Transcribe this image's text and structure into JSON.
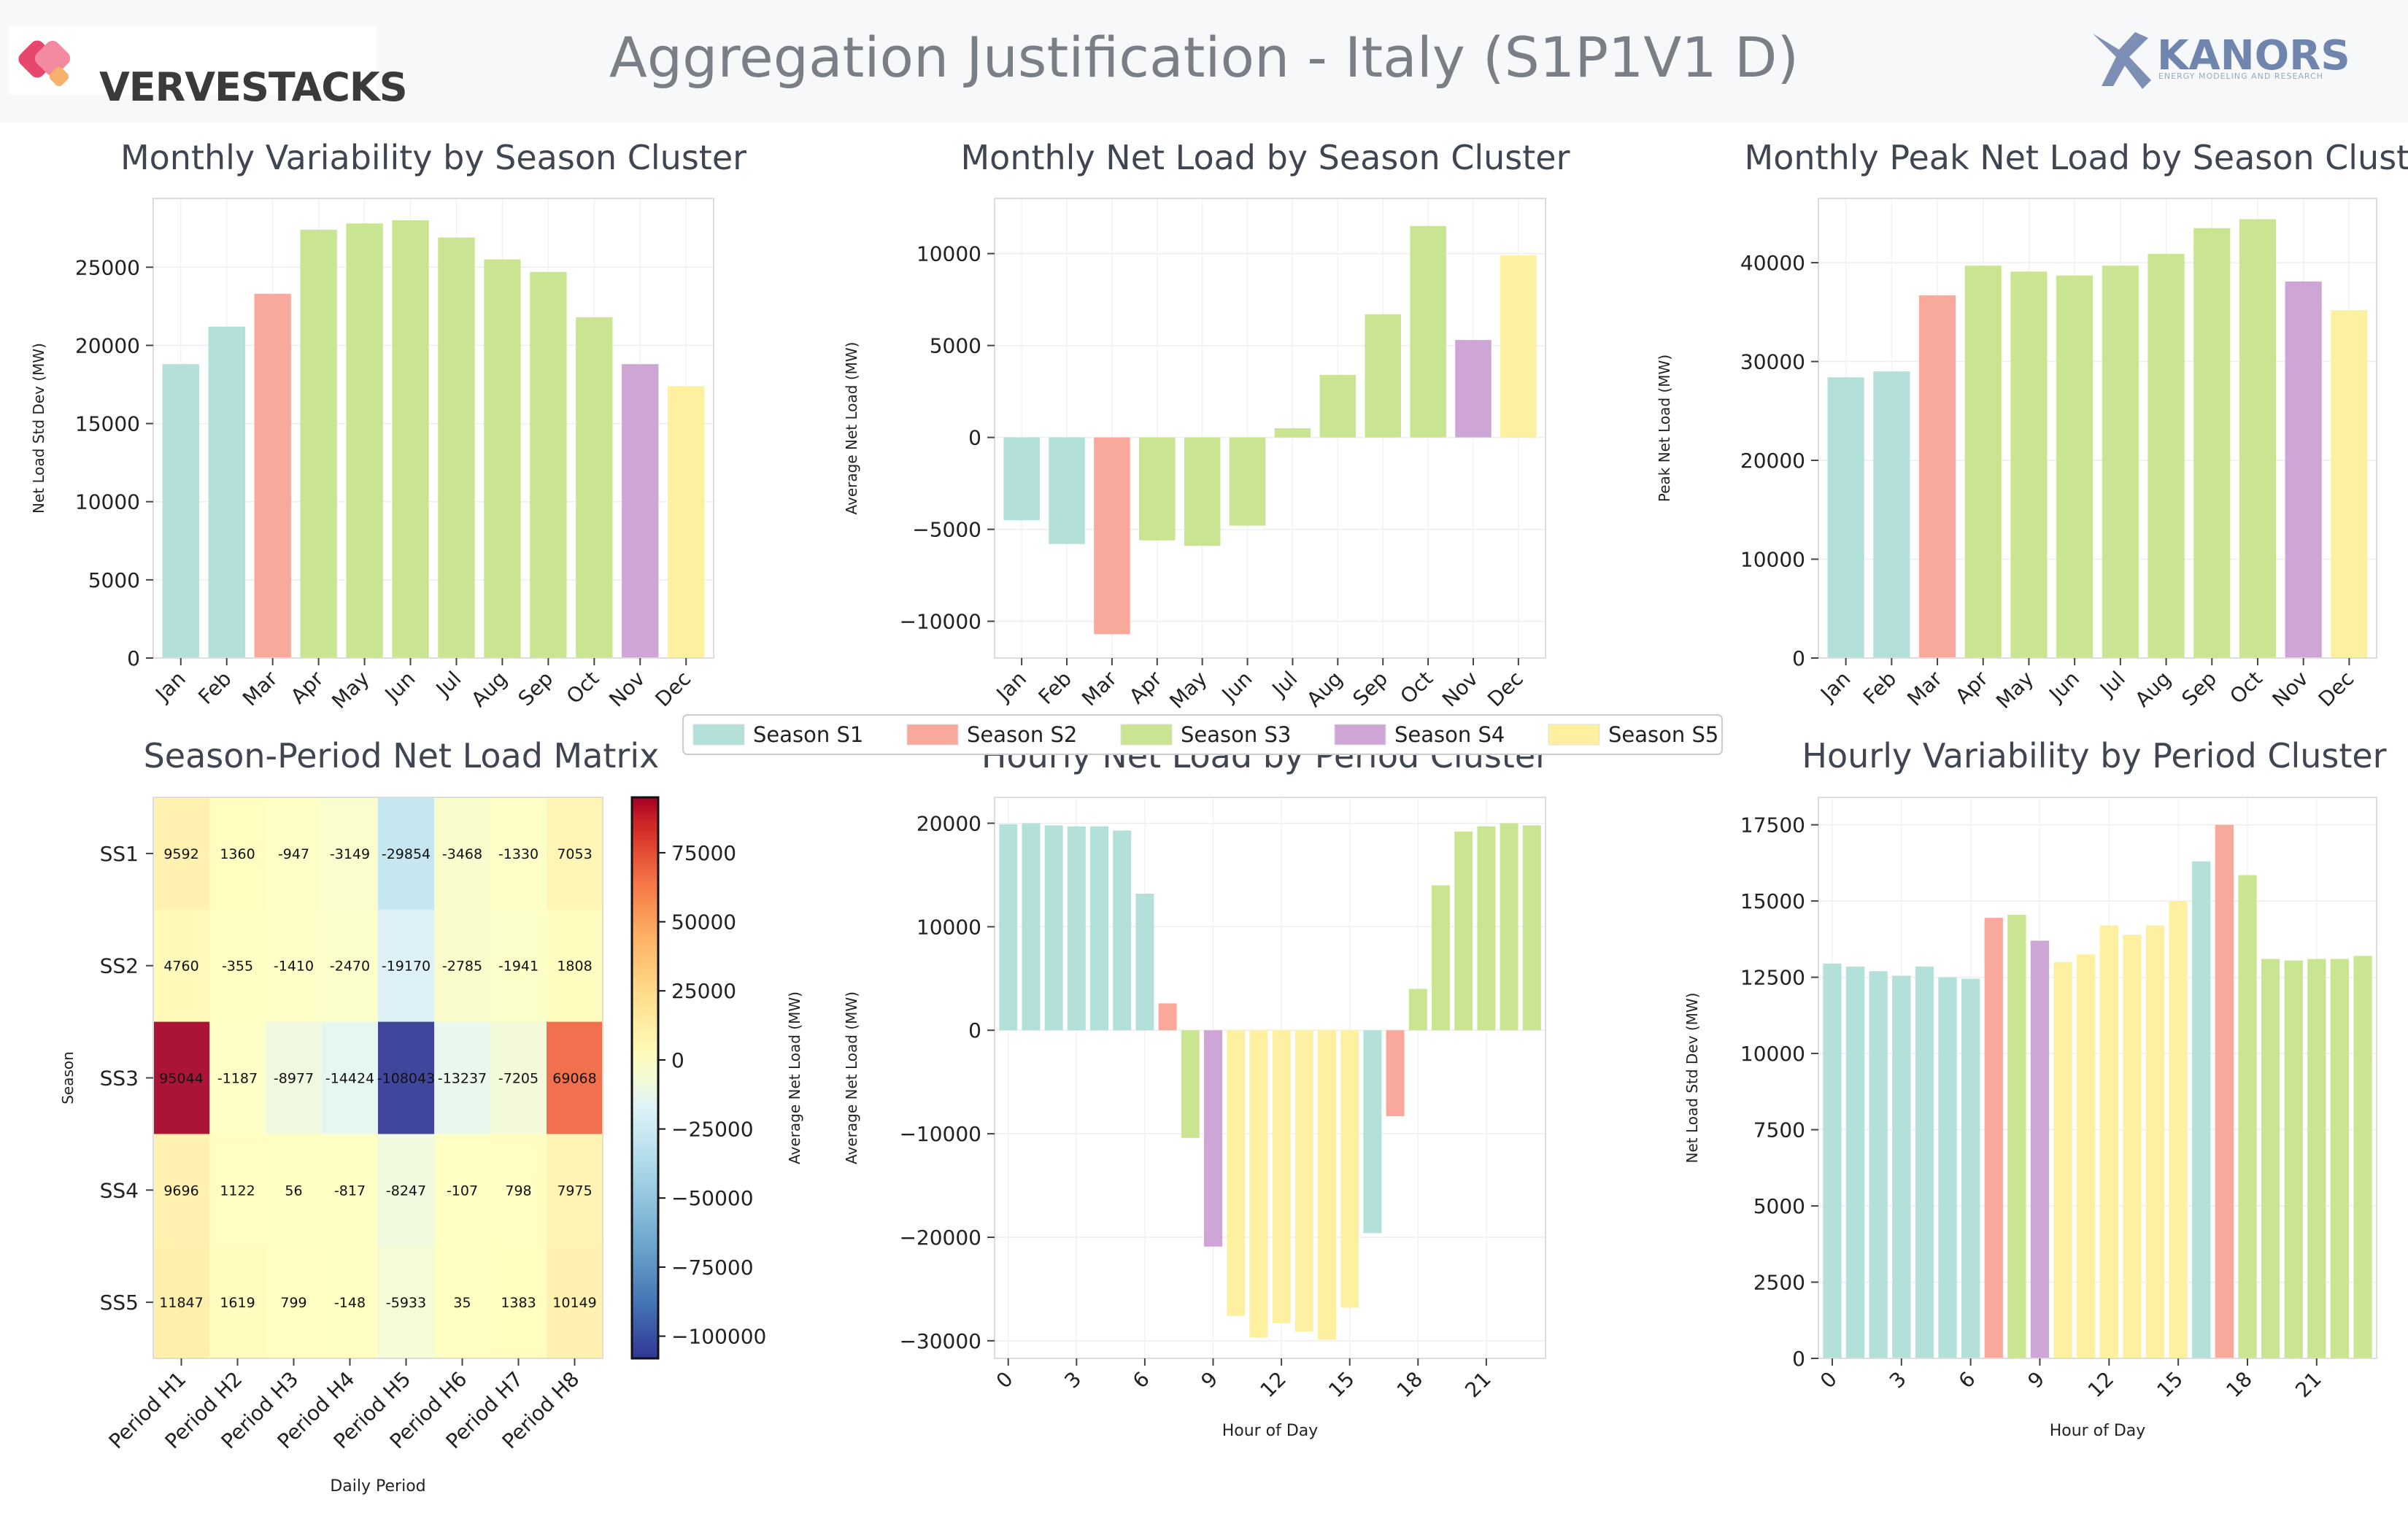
{
  "header": {
    "brand_left": "VERVESTACKS",
    "title": "Aggregation Justification - Italy (S1P1V1 D)",
    "brand_right": "KANORS",
    "brand_right_sub": "ENERGY MODELING AND RESEARCH"
  },
  "colors": {
    "S1": "#b3e0d8",
    "S2": "#f9a99c",
    "S3": "#c9e591",
    "S4": "#cda6d6",
    "S5": "#fdf0a0"
  },
  "legend": [
    "Season S1",
    "Season S2",
    "Season S3",
    "Season S4",
    "Season S5"
  ],
  "chart_data": [
    {
      "id": "variability",
      "type": "bar",
      "title": "Monthly Variability by Season Cluster",
      "xlabel": "",
      "ylabel": "Net Load Std Dev (MW)",
      "categories": [
        "Jan",
        "Feb",
        "Mar",
        "Apr",
        "May",
        "Jun",
        "Jul",
        "Aug",
        "Sep",
        "Oct",
        "Nov",
        "Dec"
      ],
      "values": [
        18800,
        21200,
        23300,
        27400,
        27800,
        28000,
        26900,
        25500,
        24700,
        21800,
        18800,
        17400
      ],
      "clusters": [
        "S1",
        "S1",
        "S2",
        "S3",
        "S3",
        "S3",
        "S3",
        "S3",
        "S3",
        "S3",
        "S4",
        "S5"
      ],
      "ylim": [
        0,
        29400
      ],
      "yticks": [
        0,
        5000,
        10000,
        15000,
        20000,
        25000
      ]
    },
    {
      "id": "netload",
      "type": "bar",
      "title": "Monthly Net Load by Season Cluster",
      "xlabel": "",
      "ylabel": "Average Net Load (MW)",
      "categories": [
        "Jan",
        "Feb",
        "Mar",
        "Apr",
        "May",
        "Jun",
        "Jul",
        "Aug",
        "Sep",
        "Oct",
        "Nov",
        "Dec"
      ],
      "values": [
        -4500,
        -5800,
        -10700,
        -5600,
        -5900,
        -4800,
        500,
        3400,
        6700,
        11500,
        5300,
        9900
      ],
      "clusters": [
        "S1",
        "S1",
        "S2",
        "S3",
        "S3",
        "S3",
        "S3",
        "S3",
        "S3",
        "S3",
        "S4",
        "S5"
      ],
      "ylim": [
        -12000,
        13000
      ],
      "yticks": [
        -10000,
        -5000,
        0,
        5000,
        10000
      ]
    },
    {
      "id": "peak",
      "type": "bar",
      "title": "Monthly Peak Net Load by Season Cluster",
      "xlabel": "",
      "ylabel": "Peak Net Load (MW)",
      "categories": [
        "Jan",
        "Feb",
        "Mar",
        "Apr",
        "May",
        "Jun",
        "Jul",
        "Aug",
        "Sep",
        "Oct",
        "Nov",
        "Dec"
      ],
      "values": [
        28400,
        29000,
        36700,
        39700,
        39100,
        38700,
        39700,
        40900,
        43500,
        44400,
        38100,
        35200
      ],
      "clusters": [
        "S1",
        "S1",
        "S2",
        "S3",
        "S3",
        "S3",
        "S3",
        "S3",
        "S3",
        "S3",
        "S4",
        "S5"
      ],
      "ylim": [
        0,
        46500
      ],
      "yticks": [
        0,
        10000,
        20000,
        30000,
        40000
      ]
    },
    {
      "id": "matrix",
      "type": "heatmap",
      "title": "Season-Period Net Load Matrix",
      "xlabel": "Daily Period",
      "ylabel": "Season",
      "colorbar_label": "Average Net Load (MW)",
      "rows": [
        "SS1",
        "SS2",
        "SS3",
        "SS4",
        "SS5"
      ],
      "cols": [
        "Period H1",
        "Period H2",
        "Period H3",
        "Period H4",
        "Period H5",
        "Period H6",
        "Period H7",
        "Period H8"
      ],
      "values": [
        [
          9592,
          1360,
          -947,
          -3149,
          -29854,
          -3468,
          -1330,
          7053
        ],
        [
          4760,
          -355,
          -1410,
          -2470,
          -19170,
          -2785,
          -1941,
          1808
        ],
        [
          95044,
          -1187,
          -8977,
          -14424,
          -108043,
          -13237,
          -7205,
          69068
        ],
        [
          9696,
          1122,
          56,
          -817,
          -8247,
          -107,
          798,
          7975
        ],
        [
          11847,
          1619,
          799,
          -148,
          -5933,
          35,
          1383,
          10149
        ]
      ],
      "vlim": [
        -108043,
        95044
      ],
      "cbar_ticks": [
        75000,
        50000,
        25000,
        0,
        -25000,
        -50000,
        -75000,
        -100000
      ]
    },
    {
      "id": "hourly_netload",
      "type": "bar",
      "title": "Hourly Net Load by Period Cluster",
      "xlabel": "Hour of Day",
      "ylabel": "Average Net Load (MW)",
      "categories": [
        0,
        1,
        2,
        3,
        4,
        5,
        6,
        7,
        8,
        9,
        10,
        11,
        12,
        13,
        14,
        15,
        16,
        17,
        18,
        19,
        20,
        21,
        22,
        23
      ],
      "values": [
        19900,
        20000,
        19800,
        19700,
        19700,
        19300,
        13200,
        2600,
        -10400,
        -20900,
        -27600,
        -29700,
        -28300,
        -29100,
        -29900,
        -26800,
        -19600,
        -8300,
        4000,
        14000,
        19200,
        19700,
        20000,
        19800
      ],
      "clusters": [
        "S1",
        "S1",
        "S1",
        "S1",
        "S1",
        "S1",
        "S1",
        "S2",
        "S3",
        "S4",
        "S5",
        "S5",
        "S5",
        "S5",
        "S5",
        "S5",
        "S1",
        "S2",
        "S3",
        "S3",
        "S3",
        "S3",
        "S3",
        "S3"
      ],
      "ylim": [
        -31700,
        22500
      ],
      "yticks": [
        -30000,
        -20000,
        -10000,
        0,
        10000,
        20000
      ],
      "xticks": [
        0,
        3,
        6,
        9,
        12,
        15,
        18,
        21
      ]
    },
    {
      "id": "hourly_variability",
      "type": "bar",
      "title": "Hourly Variability by Period Cluster",
      "xlabel": "Hour of Day",
      "ylabel": "Net Load Std Dev (MW)",
      "categories": [
        0,
        1,
        2,
        3,
        4,
        5,
        6,
        7,
        8,
        9,
        10,
        11,
        12,
        13,
        14,
        15,
        16,
        17,
        18,
        19,
        20,
        21,
        22,
        23
      ],
      "values": [
        12950,
        12850,
        12700,
        12550,
        12850,
        12500,
        12450,
        14450,
        14550,
        13700,
        13000,
        13250,
        14200,
        13900,
        14200,
        15000,
        16300,
        17500,
        15850,
        13100,
        13050,
        13100,
        13100,
        13200
      ],
      "clusters": [
        "S1",
        "S1",
        "S1",
        "S1",
        "S1",
        "S1",
        "S1",
        "S2",
        "S3",
        "S4",
        "S5",
        "S5",
        "S5",
        "S5",
        "S5",
        "S5",
        "S1",
        "S2",
        "S3",
        "S3",
        "S3",
        "S3",
        "S3",
        "S3"
      ],
      "ylim": [
        0,
        18400
      ],
      "yticks": [
        0,
        2500,
        5000,
        7500,
        10000,
        12500,
        15000,
        17500
      ],
      "xticks": [
        0,
        3,
        6,
        9,
        12,
        15,
        18,
        21
      ]
    }
  ]
}
